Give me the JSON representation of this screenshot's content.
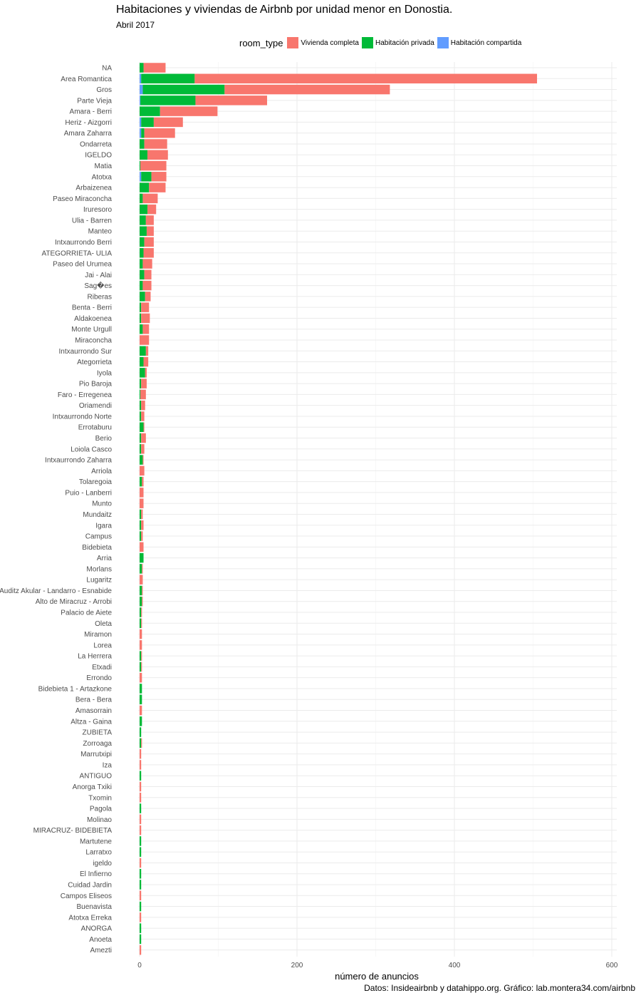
{
  "chart_data": {
    "type": "bar",
    "orientation": "horizontal",
    "stacked": true,
    "title": "Habitaciones y viviendas de Airbnb por unidad menor en Donostia.",
    "subtitle": "Abril 2017",
    "xlabel": "número de anuncios",
    "ylabel": "",
    "caption": "Datos: Insideairbnb y datahippo.org. Gráfico: lab.montera34.com/airbnb",
    "xlim": [
      0,
      600
    ],
    "x_ticks": [
      "0",
      "200",
      "400",
      "600"
    ],
    "grid": true,
    "legend": {
      "title": "room_type",
      "position": "top",
      "entries": [
        "Vivienda completa",
        "Habitación privada",
        "Habitación compartida"
      ]
    },
    "colors": [
      "#F8766D",
      "#00BA38",
      "#619CFF"
    ],
    "categories": [
      "NA",
      "Area Romantica",
      "Gros",
      "Parte Vieja",
      "Amara - Berri",
      "Heriz - Aizgorri",
      "Amara Zaharra",
      "Ondarreta",
      "IGELDO",
      "Matia",
      "Atotxa",
      "Arbaizenea",
      "Paseo Miraconcha",
      "Iruresoro",
      "Ulia - Barren",
      "Manteo",
      "Intxaurrondo Berri",
      "ATEGORRIETA- ULIA",
      "Paseo del Urumea",
      "Jai - Alai",
      "Sag�es",
      "Riberas",
      "Benta - Berri",
      "Aldakoenea",
      "Monte Urgull",
      "Miraconcha",
      "Intxaurrondo Sur",
      "Ategorrieta",
      "Iyola",
      "Pio Baroja",
      "Faro - Erregenea",
      "Oriamendi",
      "Intxaurrondo Norte",
      "Errotaburu",
      "Berio",
      "Loiola Casco",
      "Intxaurrondo Zaharra",
      "Arriola",
      "Tolaregoia",
      "Puio - Lanberri",
      "Munto",
      "Mundaitz",
      "Igara",
      "Campus",
      "Bidebieta",
      "Arria",
      "Morlans",
      "Lugaritz",
      "Auditz Akular - Landarro - Esnabide",
      "Alto de Miracruz - Arrobi",
      "Palacio de Aiete",
      "Oleta",
      "Miramon",
      "Lorea",
      "La Herrera",
      "Etxadi",
      "Errondo",
      "Bidebieta 1 - Artazkone",
      "Bera - Bera",
      "Amasorrain",
      "Altza - Gaina",
      "ZUBIETA",
      "Zorroaga",
      "Marrutxipi",
      "Iza",
      "ANTIGUO",
      "Anorga Txiki",
      "Txomin",
      "Pagola",
      "Molinao",
      "MIRACRUZ- BIDEBIETA",
      "Martutene",
      "Larratxo",
      "igeldo",
      "El Infierno",
      "Cuidad Jardin",
      "Campos Eliseos",
      "Buenavista",
      "Atotxa Erreka",
      "ANORGA",
      "Anoeta",
      "Amezti"
    ],
    "series": [
      {
        "name": "Habitación compartida",
        "values": [
          0,
          2,
          4,
          1,
          0,
          2,
          2,
          0,
          0,
          0,
          2,
          0,
          0,
          0,
          0,
          0,
          0,
          0,
          0,
          0,
          0,
          0,
          0,
          0,
          0,
          0,
          0,
          0,
          0,
          0,
          0,
          0,
          0,
          0,
          0,
          0,
          0,
          0,
          0,
          0,
          0,
          0,
          0,
          0,
          0,
          0,
          0,
          0,
          0,
          0,
          0,
          0,
          0,
          0,
          0,
          0,
          0,
          0,
          0,
          0,
          0,
          0,
          0,
          0,
          0,
          0,
          0,
          0,
          0,
          0,
          0,
          0,
          0,
          0,
          0,
          0,
          0,
          0,
          0,
          0,
          0,
          0
        ]
      },
      {
        "name": "Habitación privada",
        "values": [
          5,
          68,
          104,
          70,
          26,
          16,
          4,
          6,
          10,
          1,
          13,
          12,
          4,
          10,
          8,
          9,
          6,
          5,
          4,
          6,
          4,
          7,
          2,
          2,
          4,
          0,
          8,
          5,
          7,
          2,
          1,
          2,
          2,
          5,
          2,
          2,
          4,
          0,
          3,
          0,
          0,
          2,
          2,
          2,
          0,
          5,
          3,
          0,
          3,
          3,
          2,
          2,
          0,
          0,
          2,
          2,
          0,
          3,
          3,
          0,
          3,
          2,
          2,
          0,
          0,
          2,
          0,
          0,
          2,
          0,
          0,
          2,
          2,
          0,
          2,
          2,
          0,
          2,
          0,
          2,
          2,
          0
        ]
      },
      {
        "name": "Vivienda completa",
        "values": [
          28,
          435,
          210,
          91,
          73,
          37,
          39,
          29,
          26,
          33,
          19,
          21,
          19,
          11,
          10,
          9,
          12,
          13,
          12,
          9,
          11,
          7,
          10,
          11,
          8,
          12,
          3,
          6,
          2,
          7,
          7,
          5,
          4,
          1,
          6,
          4,
          1,
          6,
          2,
          5,
          5,
          2,
          3,
          2,
          5,
          0,
          1,
          4,
          1,
          1,
          1,
          1,
          3,
          3,
          1,
          1,
          3,
          0,
          0,
          3,
          0,
          0,
          1,
          2,
          2,
          0,
          2,
          2,
          0,
          2,
          2,
          0,
          0,
          2,
          0,
          0,
          2,
          0,
          2,
          0,
          0,
          2
        ]
      }
    ]
  }
}
